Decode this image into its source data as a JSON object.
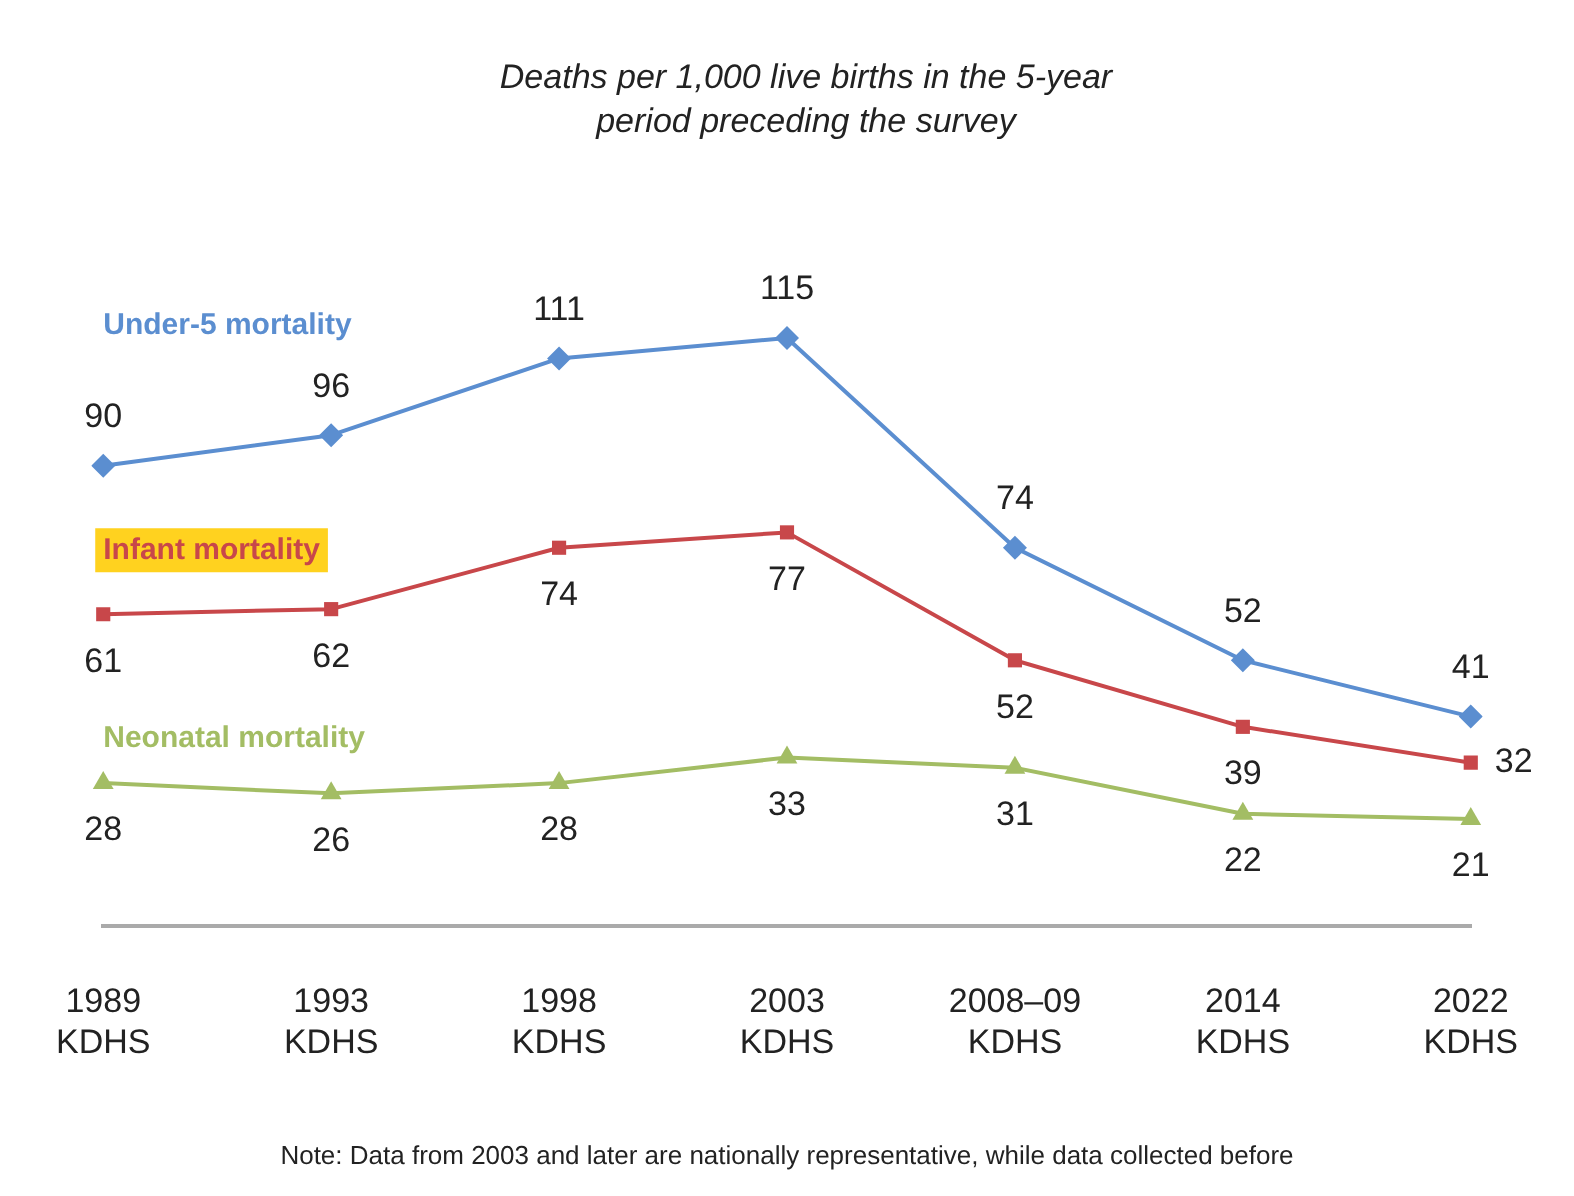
{
  "chart_data": {
    "type": "line",
    "title": "Deaths per 1,000 live births in the 5-year period preceding the survey",
    "categories": [
      "1989 KDHS",
      "1993 KDHS",
      "1998 KDHS",
      "2003 KDHS",
      "2008–09 KDHS",
      "2014 KDHS",
      "2022 KDHS"
    ],
    "series": [
      {
        "name": "Under-5 mortality",
        "color": "#5b8ed0",
        "marker": "diamond",
        "values": [
          90,
          96,
          111,
          115,
          74,
          52,
          41
        ]
      },
      {
        "name": "Infant mortality",
        "color": "#c8474a",
        "marker": "square",
        "values": [
          61,
          62,
          74,
          77,
          52,
          39,
          32
        ]
      },
      {
        "name": "Neonatal mortality",
        "color": "#a3bd64",
        "marker": "triangle",
        "values": [
          28,
          26,
          28,
          33,
          31,
          22,
          21
        ]
      }
    ],
    "tick_labels": "x",
    "grid": false,
    "legend": false,
    "data_labels": true,
    "line_style": "solid",
    "annotations": [
      "Note: Data from 2003 and later are nationally representative, while data collected before"
    ]
  }
}
